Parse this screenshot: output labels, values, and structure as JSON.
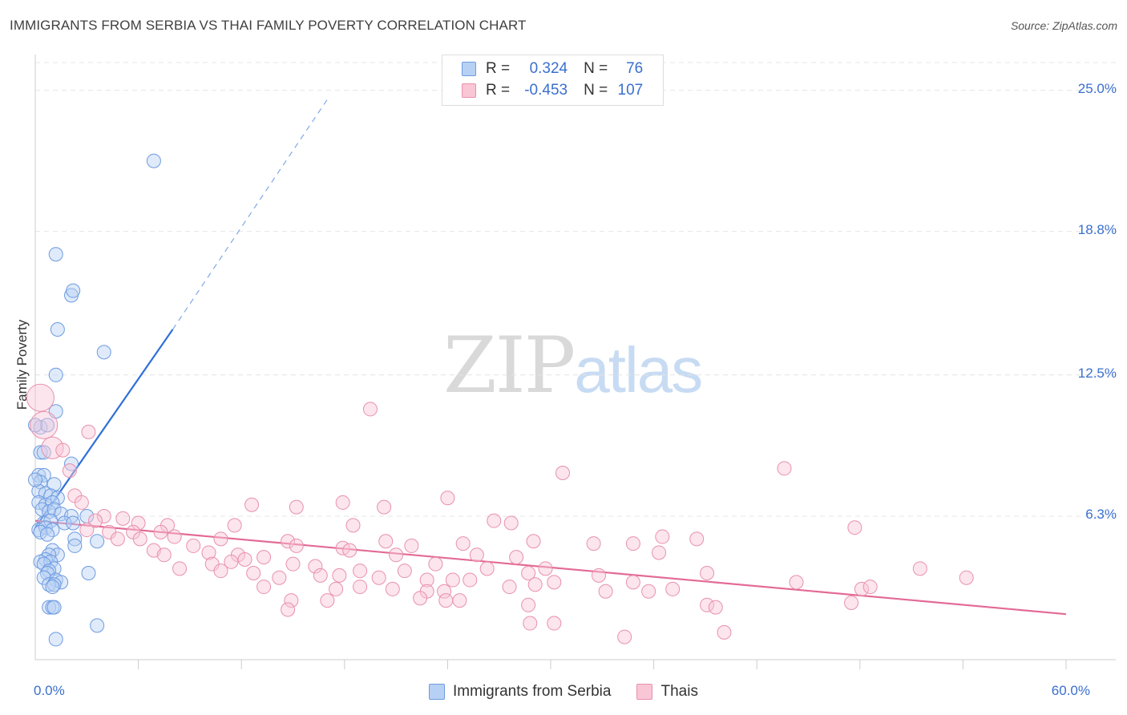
{
  "header": {
    "title": "IMMIGRANTS FROM SERBIA VS THAI FAMILY POVERTY CORRELATION CHART",
    "source": "Source: ZipAtlas.com"
  },
  "watermark": {
    "part1": "ZIP",
    "part2": "atlas"
  },
  "legend": {
    "r_label": "R =",
    "n_label": "N =",
    "rows": [
      {
        "r": "0.324",
        "n": "76",
        "color": "#6d9be0"
      },
      {
        "r": "-0.453",
        "n": "107",
        "color": "#e891ac"
      }
    ]
  },
  "bottom_legend": {
    "items": [
      {
        "label": "Immigrants from Serbia",
        "color": "#6d9be0"
      },
      {
        "label": "Thais",
        "color": "#e891ac"
      }
    ]
  },
  "chart_data": {
    "type": "scatter",
    "title": "IMMIGRANTS FROM SERBIA VS THAI FAMILY POVERTY CORRELATION CHART",
    "xlabel": "",
    "ylabel": "Family Poverty",
    "xlim": [
      0,
      60
    ],
    "ylim": [
      0,
      26.5
    ],
    "x_tick_labels": [
      "0.0%",
      "60.0%"
    ],
    "y_ticks": [
      6.3,
      12.5,
      18.8,
      25.0
    ],
    "y_tick_labels": [
      "6.3%",
      "12.5%",
      "18.8%",
      "25.0%"
    ],
    "series": [
      {
        "name": "Immigrants from Serbia",
        "color": "#6d9be0",
        "trend_line": {
          "x": [
            0.0,
            8.0
          ],
          "y": [
            5.8,
            14.5
          ],
          "dashed_to": {
            "x": 17.0,
            "y": 24.6
          }
        },
        "points": [
          [
            6.9,
            21.9,
            1
          ],
          [
            1.2,
            17.8,
            1
          ],
          [
            2.1,
            16.0,
            1
          ],
          [
            2.2,
            16.2,
            1
          ],
          [
            1.3,
            14.5,
            1
          ],
          [
            4.0,
            13.5,
            1
          ],
          [
            1.2,
            12.5,
            1
          ],
          [
            1.2,
            10.9,
            1
          ],
          [
            0.3,
            10.2,
            1
          ],
          [
            0.7,
            10.3,
            1
          ],
          [
            0.3,
            9.1,
            1
          ],
          [
            0.5,
            9.1,
            1
          ],
          [
            2.1,
            8.6,
            1
          ],
          [
            0.2,
            8.1,
            1
          ],
          [
            0.5,
            8.1,
            1
          ],
          [
            0.3,
            7.8,
            1
          ],
          [
            1.1,
            7.7,
            1
          ],
          [
            0.2,
            7.4,
            1
          ],
          [
            0.6,
            7.3,
            1
          ],
          [
            0.9,
            7.2,
            1
          ],
          [
            1.3,
            7.1,
            1
          ],
          [
            0.2,
            6.9,
            1
          ],
          [
            0.6,
            6.8,
            1
          ],
          [
            1.0,
            6.9,
            1
          ],
          [
            0.4,
            6.6,
            1
          ],
          [
            0.8,
            6.5,
            1
          ],
          [
            1.1,
            6.6,
            1
          ],
          [
            1.5,
            6.4,
            1
          ],
          [
            2.1,
            6.3,
            1
          ],
          [
            3.0,
            6.3,
            1
          ],
          [
            0.5,
            6.0,
            1
          ],
          [
            0.9,
            6.1,
            1
          ],
          [
            1.7,
            6.0,
            1
          ],
          [
            2.2,
            6.0,
            1
          ],
          [
            0.2,
            5.7,
            1
          ],
          [
            0.6,
            5.8,
            1
          ],
          [
            1.0,
            5.7,
            1
          ],
          [
            0.3,
            5.6,
            1
          ],
          [
            0.7,
            5.5,
            1
          ],
          [
            3.6,
            5.2,
            1
          ],
          [
            2.3,
            5.3,
            1
          ],
          [
            2.3,
            5.0,
            1
          ],
          [
            1.0,
            4.8,
            1
          ],
          [
            1.3,
            4.6,
            1
          ],
          [
            0.8,
            4.6,
            1
          ],
          [
            0.6,
            4.4,
            1
          ],
          [
            0.3,
            4.3,
            1
          ],
          [
            0.9,
            4.3,
            1
          ],
          [
            0.5,
            4.2,
            1
          ],
          [
            1.1,
            4.0,
            1
          ],
          [
            0.8,
            3.9,
            1
          ],
          [
            0.7,
            3.8,
            1
          ],
          [
            3.1,
            3.8,
            1
          ],
          [
            0.5,
            3.6,
            1
          ],
          [
            1.2,
            3.5,
            1
          ],
          [
            1.5,
            3.4,
            1
          ],
          [
            0.8,
            3.3,
            1
          ],
          [
            1.1,
            3.3,
            1
          ],
          [
            1.0,
            3.2,
            1
          ],
          [
            0.8,
            2.3,
            1
          ],
          [
            1.0,
            2.3,
            1
          ],
          [
            1.1,
            2.3,
            1
          ],
          [
            3.6,
            1.5,
            1
          ],
          [
            1.2,
            0.9,
            1
          ],
          [
            0.0,
            10.3,
            1
          ],
          [
            0.0,
            7.9,
            1
          ]
        ]
      },
      {
        "name": "Thais",
        "color": "#e891ac",
        "trend_line": {
          "x": [
            0.0,
            60.0
          ],
          "y": [
            6.1,
            2.0
          ]
        },
        "points": [
          [
            0.3,
            11.5,
            2
          ],
          [
            0.5,
            10.3,
            2
          ],
          [
            1.0,
            9.3,
            1.6
          ],
          [
            1.6,
            9.2,
            1
          ],
          [
            3.1,
            10.0,
            1
          ],
          [
            19.5,
            11.0,
            1
          ],
          [
            2.0,
            8.3,
            1
          ],
          [
            30.7,
            8.2,
            1
          ],
          [
            43.6,
            8.4,
            1
          ],
          [
            2.3,
            7.2,
            1
          ],
          [
            2.7,
            6.9,
            1
          ],
          [
            12.6,
            6.8,
            1
          ],
          [
            17.9,
            6.9,
            1
          ],
          [
            24.0,
            7.1,
            1
          ],
          [
            15.2,
            6.7,
            1
          ],
          [
            20.3,
            6.7,
            1
          ],
          [
            4.0,
            6.3,
            1
          ],
          [
            5.1,
            6.2,
            1
          ],
          [
            3.5,
            6.1,
            1
          ],
          [
            6.0,
            6.0,
            1
          ],
          [
            7.7,
            5.9,
            1
          ],
          [
            11.6,
            5.9,
            1
          ],
          [
            18.5,
            5.9,
            1
          ],
          [
            26.7,
            6.1,
            1
          ],
          [
            27.7,
            6.0,
            1
          ],
          [
            47.7,
            5.8,
            1
          ],
          [
            3.0,
            5.7,
            1
          ],
          [
            4.3,
            5.6,
            1
          ],
          [
            5.7,
            5.6,
            1
          ],
          [
            6.1,
            5.3,
            1
          ],
          [
            7.3,
            5.6,
            1
          ],
          [
            8.1,
            5.4,
            1
          ],
          [
            4.8,
            5.3,
            1
          ],
          [
            10.8,
            5.3,
            1
          ],
          [
            14.7,
            5.2,
            1
          ],
          [
            20.4,
            5.2,
            1
          ],
          [
            9.2,
            5.0,
            1
          ],
          [
            15.2,
            5.0,
            1
          ],
          [
            17.9,
            4.9,
            1
          ],
          [
            29.0,
            5.2,
            1
          ],
          [
            32.5,
            5.1,
            1
          ],
          [
            34.8,
            5.1,
            1
          ],
          [
            36.5,
            5.4,
            1
          ],
          [
            38.5,
            5.3,
            1
          ],
          [
            21.9,
            5.0,
            1
          ],
          [
            24.9,
            5.1,
            1
          ],
          [
            6.9,
            4.8,
            1
          ],
          [
            7.5,
            4.6,
            1
          ],
          [
            10.1,
            4.7,
            1
          ],
          [
            11.8,
            4.6,
            1
          ],
          [
            12.2,
            4.4,
            1
          ],
          [
            18.3,
            4.8,
            1
          ],
          [
            21.0,
            4.6,
            1
          ],
          [
            25.7,
            4.6,
            1
          ],
          [
            28.0,
            4.5,
            1
          ],
          [
            36.3,
            4.7,
            1
          ],
          [
            10.3,
            4.2,
            1
          ],
          [
            11.4,
            4.3,
            1
          ],
          [
            13.3,
            4.5,
            1
          ],
          [
            15.0,
            4.2,
            1
          ],
          [
            16.3,
            4.1,
            1
          ],
          [
            18.9,
            3.9,
            1
          ],
          [
            21.5,
            3.9,
            1
          ],
          [
            23.3,
            4.2,
            1
          ],
          [
            26.3,
            4.0,
            1
          ],
          [
            29.7,
            4.0,
            1
          ],
          [
            8.4,
            4.0,
            1
          ],
          [
            10.8,
            3.9,
            1
          ],
          [
            12.7,
            3.8,
            1
          ],
          [
            14.2,
            3.6,
            1
          ],
          [
            16.6,
            3.7,
            1
          ],
          [
            17.7,
            3.7,
            1
          ],
          [
            20.0,
            3.6,
            1
          ],
          [
            22.8,
            3.5,
            1
          ],
          [
            24.3,
            3.5,
            1
          ],
          [
            25.3,
            3.5,
            1
          ],
          [
            28.7,
            3.8,
            1
          ],
          [
            30.2,
            3.4,
            1
          ],
          [
            32.8,
            3.7,
            1
          ],
          [
            34.8,
            3.4,
            1
          ],
          [
            39.1,
            3.8,
            1
          ],
          [
            44.3,
            3.4,
            1
          ],
          [
            51.5,
            4.0,
            1
          ],
          [
            54.2,
            3.6,
            1
          ],
          [
            13.3,
            3.2,
            1
          ],
          [
            17.5,
            3.1,
            1
          ],
          [
            18.9,
            3.2,
            1
          ],
          [
            20.8,
            3.1,
            1
          ],
          [
            22.8,
            3.0,
            1
          ],
          [
            23.8,
            3.0,
            1
          ],
          [
            27.6,
            3.2,
            1
          ],
          [
            29.1,
            3.3,
            1
          ],
          [
            33.2,
            3.0,
            1
          ],
          [
            35.7,
            3.0,
            1
          ],
          [
            37.1,
            3.1,
            1
          ],
          [
            48.1,
            3.1,
            1
          ],
          [
            48.6,
            3.2,
            1
          ],
          [
            14.9,
            2.6,
            1
          ],
          [
            17.0,
            2.6,
            1
          ],
          [
            22.4,
            2.7,
            1
          ],
          [
            23.9,
            2.6,
            1
          ],
          [
            24.7,
            2.6,
            1
          ],
          [
            28.7,
            2.4,
            1
          ],
          [
            39.1,
            2.4,
            1
          ],
          [
            39.6,
            2.3,
            1
          ],
          [
            47.5,
            2.5,
            1
          ],
          [
            14.7,
            2.2,
            1
          ],
          [
            28.8,
            1.6,
            1
          ],
          [
            30.2,
            1.6,
            1
          ],
          [
            34.3,
            1.0,
            1
          ],
          [
            40.1,
            1.2,
            1
          ]
        ]
      }
    ]
  }
}
